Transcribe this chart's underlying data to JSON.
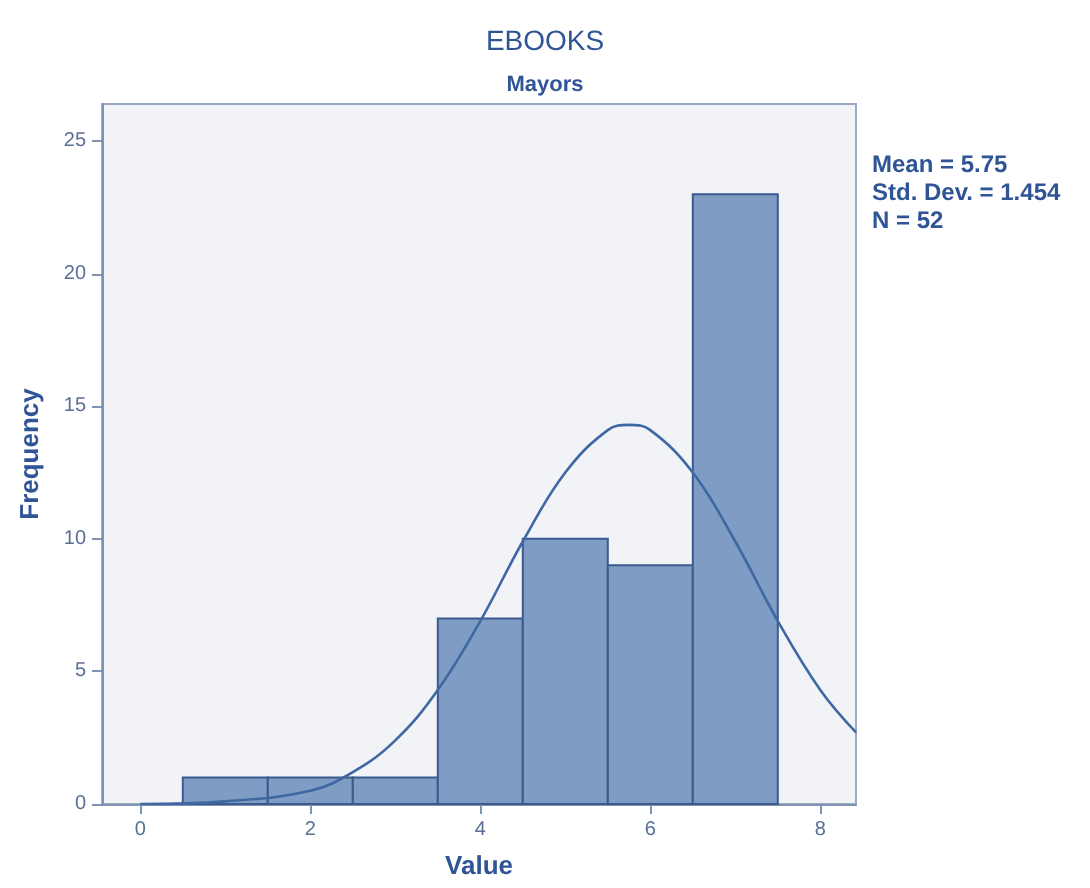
{
  "chart_data": {
    "type": "histogram",
    "title": "EBOOKS",
    "subtitle": "Mayors",
    "xlabel": "Value",
    "ylabel": "Frequency",
    "bins": [
      0.5,
      1.5,
      2.5,
      3.5,
      4.5,
      5.5,
      6.5,
      7.5
    ],
    "values": [
      1,
      1,
      1,
      7,
      10,
      9,
      23
    ],
    "color": "#7f9cc4",
    "xlim": [
      -0.45,
      8.42
    ],
    "xticks": [
      0,
      2,
      4,
      6,
      8
    ],
    "ylim": [
      0,
      26.4
    ],
    "yticks": [
      0,
      5,
      10,
      15,
      20,
      25
    ],
    "grid": false,
    "series": [
      {
        "type": "line",
        "color": "#3f67a2",
        "marker": "none",
        "x": [
          0,
          1,
          2,
          2.5,
          3,
          3.5,
          4,
          4.5,
          5,
          5.5,
          5.75,
          6,
          6.5,
          7,
          7.5,
          8,
          8.42
        ],
        "values": [
          0.0,
          0.1,
          0.5,
          1.2,
          2.4,
          4.3,
          6.9,
          9.9,
          12.5,
          14.1,
          14.3,
          14.1,
          12.5,
          9.9,
          6.9,
          4.3,
          2.7
        ]
      }
    ],
    "annotations": [
      "Mean = 5.75",
      "Std. Dev. = 1.454",
      "N = 52"
    ]
  }
}
